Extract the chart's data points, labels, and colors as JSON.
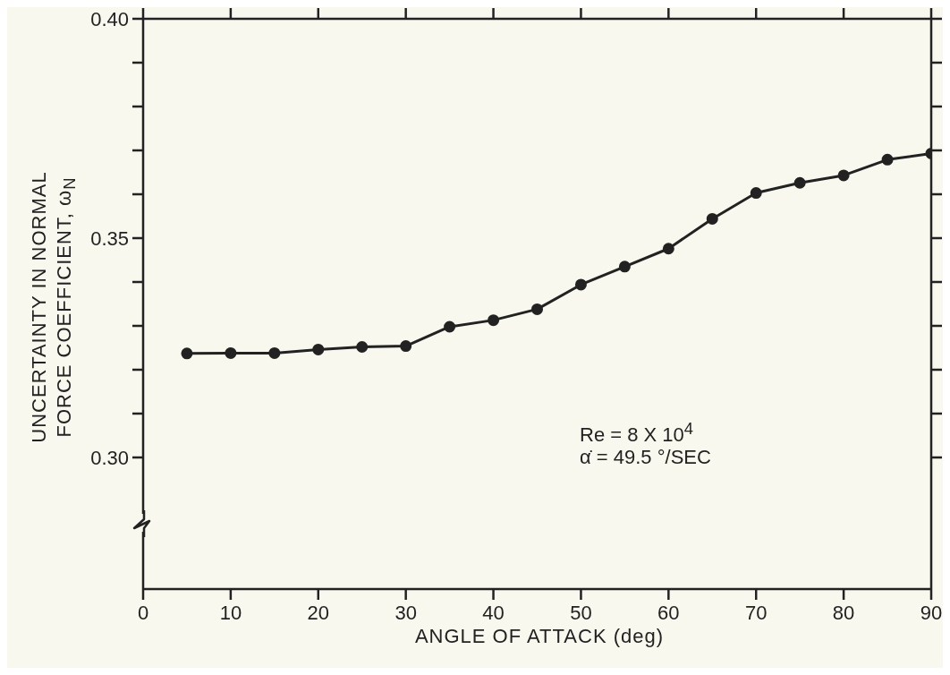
{
  "chart_data": {
    "type": "line",
    "xlabel": "ANGLE OF ATTACK (deg)",
    "ylabel": "UNCERTAINTY IN NORMAL\nFORCE COEFFICIENT, ω$_{N}$",
    "x": [
      5,
      10,
      15,
      20,
      25,
      30,
      35,
      40,
      45,
      50,
      55,
      60,
      65,
      70,
      75,
      80,
      85,
      90
    ],
    "series": [
      {
        "color": "#222222",
        "values": [
          0.3237,
          0.3238,
          0.3238,
          0.3246,
          0.3252,
          0.3254,
          0.3298,
          0.3313,
          0.3338,
          0.3394,
          0.3435,
          0.3476,
          0.3544,
          0.3603,
          0.3626,
          0.3643,
          0.3679,
          0.3693
        ]
      }
    ],
    "xlim": [
      0,
      90
    ],
    "xticks": [
      0,
      10,
      20,
      30,
      40,
      50,
      60,
      70,
      80,
      90
    ],
    "ylim": [
      0.27,
      0.4
    ],
    "yticks": [
      {
        "value": 0.3,
        "label": "0.30"
      },
      {
        "value": 0.31,
        "label": null
      },
      {
        "value": 0.32,
        "label": null
      },
      {
        "value": 0.33,
        "label": null
      },
      {
        "value": 0.34,
        "label": null
      },
      {
        "value": 0.35,
        "label": "0.35"
      },
      {
        "value": 0.36,
        "label": null
      },
      {
        "value": 0.37,
        "label": null
      },
      {
        "value": 0.38,
        "label": null
      },
      {
        "value": 0.39,
        "label": null
      },
      {
        "value": 0.4,
        "label": "0.40"
      }
    ],
    "annotations": [
      "Re = 8 X 10$^{4}$",
      "α̇ = 49.5 °/SEC"
    ],
    "marker": "circle",
    "line_style": "solid"
  }
}
